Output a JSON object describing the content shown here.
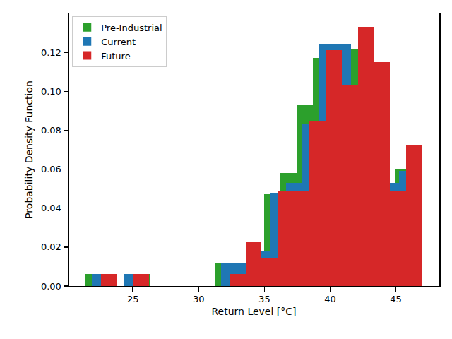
{
  "chart_data": {
    "type": "histogram",
    "x_label": "Return Level [°C]",
    "y_label": "Probability Density Function",
    "xlim": [
      20.1,
      48.3
    ],
    "ylim": [
      0,
      0.14
    ],
    "xticks": [
      25,
      30,
      35,
      40,
      45
    ],
    "yticks": [
      {
        "value": 0,
        "label": "0.00"
      },
      {
        "value": 0.02,
        "label": "0.02"
      },
      {
        "value": 0.04,
        "label": "0.04"
      },
      {
        "value": 0.06,
        "label": "0.06"
      },
      {
        "value": 0.08,
        "label": "0.08"
      },
      {
        "value": 0.1,
        "label": "0.10"
      },
      {
        "value": 0.12,
        "label": "0.12"
      }
    ],
    "grid": false,
    "legend": "upper left",
    "series": [
      {
        "name": "Pre-Industrial",
        "color": "#2ca02c",
        "bins": [
          21.34,
          22.58,
          23.82,
          25.06,
          26.3,
          27.54,
          28.78,
          30.02,
          31.26,
          32.5,
          33.74,
          34.98,
          36.22,
          37.46,
          38.7,
          39.94,
          41.18,
          42.42,
          43.66,
          44.9,
          46.14
        ],
        "values": [
          0.006,
          0,
          0,
          0.006,
          0,
          0,
          0,
          0,
          0.012,
          0.012,
          0.014,
          0.047,
          0.058,
          0.093,
          0.117,
          0.117,
          0.122,
          0.115,
          0.05,
          0.06
        ]
      },
      {
        "name": "Current",
        "color": "#1f77b4",
        "bins": [
          21.88,
          23.11,
          24.34,
          25.57,
          26.8,
          28.03,
          29.26,
          30.49,
          31.72,
          32.95,
          34.18,
          35.41,
          36.64,
          37.87,
          39.1,
          40.33,
          41.56,
          42.79,
          44.02,
          45.25,
          46.48
        ],
        "values": [
          0.006,
          0,
          0.006,
          0,
          0,
          0,
          0,
          0,
          0.012,
          0.012,
          0.018,
          0.048,
          0.053,
          0.083,
          0.124,
          0.124,
          0.103,
          0.115,
          0.053,
          0.059
        ]
      },
      {
        "name": "Future",
        "color": "#d62728",
        "bins": [
          22.58,
          23.8,
          25.02,
          26.24,
          27.46,
          28.68,
          29.9,
          31.12,
          32.34,
          33.56,
          34.78,
          36.0,
          37.22,
          38.44,
          39.66,
          40.88,
          42.1,
          43.32,
          44.54,
          45.76,
          46.98
        ],
        "values": [
          0.006,
          0,
          0.006,
          0,
          0,
          0,
          0,
          0,
          0.006,
          0.0225,
          0.014,
          0.049,
          0.049,
          0.085,
          0.121,
          0.103,
          0.133,
          0.115,
          0.049,
          0.0725
        ]
      }
    ]
  }
}
